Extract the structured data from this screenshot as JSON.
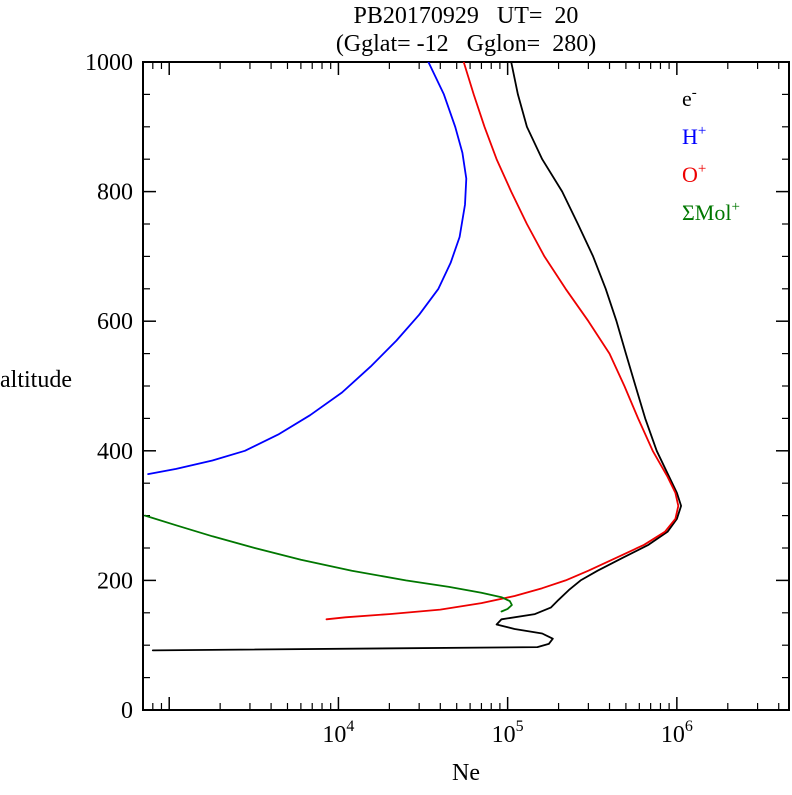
{
  "chart_data": {
    "type": "line",
    "title": "PB20170929   UT=  20",
    "subtitle": "(Gglat= -12   Gglon=  280)",
    "xlabel": "Ne",
    "ylabel": "altitude",
    "x_scale": "log",
    "xlim": [
      700,
      4600000
    ],
    "ylim": [
      0,
      1000
    ],
    "x_major_ticks": [
      {
        "value": 1000,
        "base": "",
        "exp": ""
      },
      {
        "value": 10000,
        "base": "10",
        "exp": "4"
      },
      {
        "value": 100000,
        "base": "10",
        "exp": "5"
      },
      {
        "value": 1000000,
        "base": "10",
        "exp": "6"
      }
    ],
    "y_major_ticks": [
      0,
      200,
      400,
      600,
      800,
      1000
    ],
    "y_minor_step": 50,
    "grid": false,
    "legend_position": "top-right-inside",
    "legend": [
      {
        "name": "e-",
        "base": "e",
        "sup": "-",
        "color": "#000000"
      },
      {
        "name": "H+",
        "base": "H",
        "sup": "+",
        "color": "#0000ff"
      },
      {
        "name": "O+",
        "base": "O",
        "sup": "+",
        "color": "#ee0000"
      },
      {
        "name": "SMol+",
        "base": "ΣMol",
        "sup": "+",
        "color": "#007700"
      }
    ],
    "series": [
      {
        "name": "e-",
        "color": "#000000",
        "points": [
          [
            105000,
            1000
          ],
          [
            115000,
            950
          ],
          [
            130000,
            900
          ],
          [
            160000,
            850
          ],
          [
            210000,
            800
          ],
          [
            260000,
            750
          ],
          [
            320000,
            700
          ],
          [
            380000,
            650
          ],
          [
            440000,
            600
          ],
          [
            500000,
            550
          ],
          [
            570000,
            500
          ],
          [
            650000,
            450
          ],
          [
            760000,
            400
          ],
          [
            900000,
            360
          ],
          [
            1000000,
            335
          ],
          [
            1060000,
            315
          ],
          [
            1000000,
            295
          ],
          [
            880000,
            275
          ],
          [
            680000,
            255
          ],
          [
            480000,
            235
          ],
          [
            340000,
            215
          ],
          [
            270000,
            200
          ],
          [
            230000,
            185
          ],
          [
            200000,
            170
          ],
          [
            180000,
            158
          ],
          [
            145000,
            148
          ],
          [
            92000,
            140
          ],
          [
            86000,
            132
          ],
          [
            110000,
            125
          ],
          [
            160000,
            118
          ],
          [
            185000,
            110
          ],
          [
            175000,
            102
          ],
          [
            150000,
            97
          ],
          [
            800,
            92
          ]
        ]
      },
      {
        "name": "H+",
        "color": "#0000ff",
        "points": [
          [
            34000,
            1000
          ],
          [
            42000,
            950
          ],
          [
            49000,
            900
          ],
          [
            54000,
            860
          ],
          [
            57000,
            820
          ],
          [
            56000,
            780
          ],
          [
            52000,
            730
          ],
          [
            46000,
            690
          ],
          [
            39000,
            650
          ],
          [
            30000,
            610
          ],
          [
            22000,
            570
          ],
          [
            15500,
            530
          ],
          [
            10500,
            490
          ],
          [
            6800,
            455
          ],
          [
            4400,
            425
          ],
          [
            2800,
            400
          ],
          [
            1800,
            385
          ],
          [
            1100,
            372
          ],
          [
            750,
            364
          ]
        ]
      },
      {
        "name": "O+",
        "color": "#ee0000",
        "points": [
          [
            55000,
            1000
          ],
          [
            63000,
            950
          ],
          [
            73000,
            900
          ],
          [
            86000,
            850
          ],
          [
            105000,
            800
          ],
          [
            130000,
            750
          ],
          [
            165000,
            700
          ],
          [
            220000,
            650
          ],
          [
            300000,
            600
          ],
          [
            400000,
            550
          ],
          [
            490000,
            500
          ],
          [
            590000,
            450
          ],
          [
            720000,
            400
          ],
          [
            880000,
            360
          ],
          [
            980000,
            335
          ],
          [
            1020000,
            315
          ],
          [
            980000,
            295
          ],
          [
            850000,
            275
          ],
          [
            640000,
            255
          ],
          [
            440000,
            235
          ],
          [
            300000,
            215
          ],
          [
            220000,
            200
          ],
          [
            160000,
            188
          ],
          [
            110000,
            176
          ],
          [
            70000,
            165
          ],
          [
            40000,
            155
          ],
          [
            20000,
            148
          ],
          [
            11000,
            143
          ],
          [
            8500,
            140
          ]
        ]
      },
      {
        "name": "SMol+",
        "color": "#007700",
        "points": [
          [
            720,
            300
          ],
          [
            1100,
            285
          ],
          [
            1800,
            268
          ],
          [
            3200,
            250
          ],
          [
            6000,
            232
          ],
          [
            12000,
            215
          ],
          [
            25000,
            200
          ],
          [
            45000,
            190
          ],
          [
            70000,
            181
          ],
          [
            92000,
            174
          ],
          [
            103000,
            168
          ],
          [
            106000,
            162
          ],
          [
            100000,
            156
          ],
          [
            92000,
            152
          ]
        ]
      }
    ]
  }
}
